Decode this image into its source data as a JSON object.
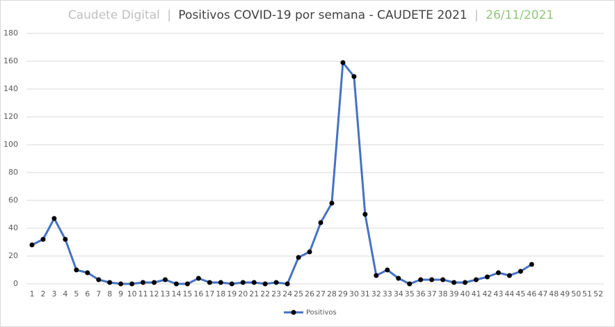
{
  "chart_data": {
    "type": "line",
    "title_source": "Caudete Digital",
    "separator": "|",
    "title": "Positivos COVID-19 por semana - CAUDETE 2021",
    "date": "26/11/2021",
    "categories": [
      1,
      2,
      3,
      4,
      5,
      6,
      7,
      8,
      9,
      10,
      11,
      12,
      13,
      14,
      15,
      16,
      17,
      18,
      19,
      20,
      21,
      22,
      23,
      24,
      25,
      26,
      27,
      28,
      29,
      30,
      31,
      32,
      33,
      34,
      35,
      36,
      37,
      38,
      39,
      40,
      41,
      42,
      43,
      44,
      45,
      46,
      47,
      48,
      49,
      50,
      51,
      52
    ],
    "series": [
      {
        "name": "Positivos",
        "color": "#4472c4",
        "marker_color": "#000000",
        "values": [
          28,
          32,
          47,
          32,
          10,
          8,
          3,
          1,
          0,
          0,
          1,
          1,
          3,
          0,
          0,
          4,
          1,
          1,
          0,
          1,
          1,
          0,
          1,
          0,
          19,
          23,
          44,
          58,
          159,
          149,
          50,
          6,
          10,
          4,
          0,
          3,
          3,
          3,
          1,
          1,
          3,
          5,
          8,
          6,
          9,
          14,
          null,
          null,
          null,
          null,
          null,
          null
        ]
      }
    ],
    "ylim": [
      0,
      180
    ],
    "yticks": [
      0,
      20,
      40,
      60,
      80,
      100,
      120,
      140,
      160,
      180
    ],
    "grid": true,
    "legend": "bottom"
  }
}
